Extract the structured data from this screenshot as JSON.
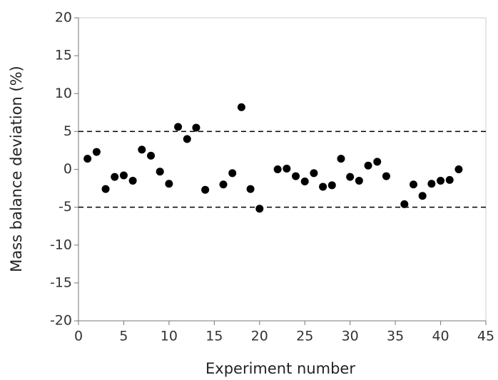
{
  "chart_data": {
    "type": "scatter",
    "xlabel": "Experiment number",
    "ylabel": "Mass balance deviation (%)",
    "x": [
      1,
      2,
      3,
      4,
      5,
      6,
      7,
      8,
      9,
      10,
      11,
      12,
      13,
      14,
      16,
      17,
      18,
      19,
      20,
      22,
      23,
      24,
      25,
      26,
      27,
      28,
      29,
      30,
      31,
      32,
      33,
      34,
      36,
      37,
      38,
      39,
      40,
      41,
      42
    ],
    "values": [
      1.4,
      2.3,
      -2.6,
      -1.0,
      -0.8,
      -1.5,
      2.6,
      1.8,
      -0.3,
      -1.9,
      5.6,
      4.0,
      5.5,
      -2.7,
      -2.0,
      -0.5,
      8.2,
      -2.6,
      -5.2,
      0.0,
      0.1,
      -0.9,
      -1.6,
      -0.5,
      -2.3,
      -2.1,
      1.4,
      -1.0,
      -1.5,
      0.5,
      1.0,
      -0.9,
      -4.6,
      -2.0,
      -3.5,
      -1.9,
      -1.5,
      -1.4,
      0.0
    ],
    "color": "#000000",
    "xlim": [
      0,
      45
    ],
    "xticks": [
      0,
      5,
      10,
      15,
      20,
      25,
      30,
      35,
      40,
      45
    ],
    "ylim": [
      -20,
      20
    ],
    "yticks": [
      -20,
      -15,
      -10,
      -5,
      0,
      5,
      10,
      15,
      20
    ],
    "reference_lines": [
      5,
      -5
    ]
  }
}
